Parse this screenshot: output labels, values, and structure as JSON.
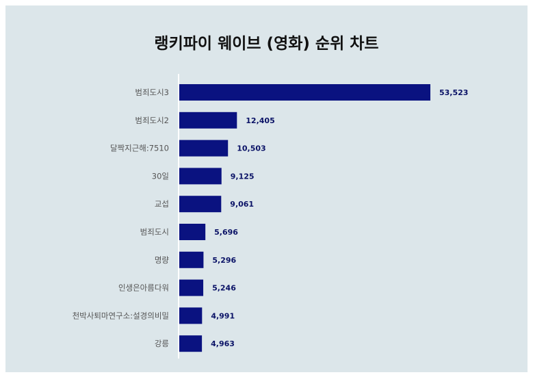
{
  "chart_data": {
    "type": "bar",
    "orientation": "horizontal",
    "title": "랭키파이 웨이브 (영화) 순위 차트",
    "categories": [
      "범죄도시3",
      "범죄도시2",
      "달짝지근해:7510",
      "30일",
      "교섭",
      "범죄도시",
      "명량",
      "인생은아름다워",
      "천박사퇴마연구소:설경의비밀",
      "강릉"
    ],
    "values": [
      53523,
      12405,
      10503,
      9125,
      9061,
      5696,
      5296,
      5246,
      4991,
      4963
    ],
    "value_labels": [
      "53,523",
      "12,405",
      "10,503",
      "9,125",
      "9,061",
      "5,696",
      "5,296",
      "5,246",
      "4,991",
      "4,963"
    ],
    "xlim": [
      0,
      53523
    ],
    "grid": false,
    "colors": {
      "bar": "#0a1280",
      "value_text": "#0a1266",
      "background": "#dce6ea"
    }
  }
}
